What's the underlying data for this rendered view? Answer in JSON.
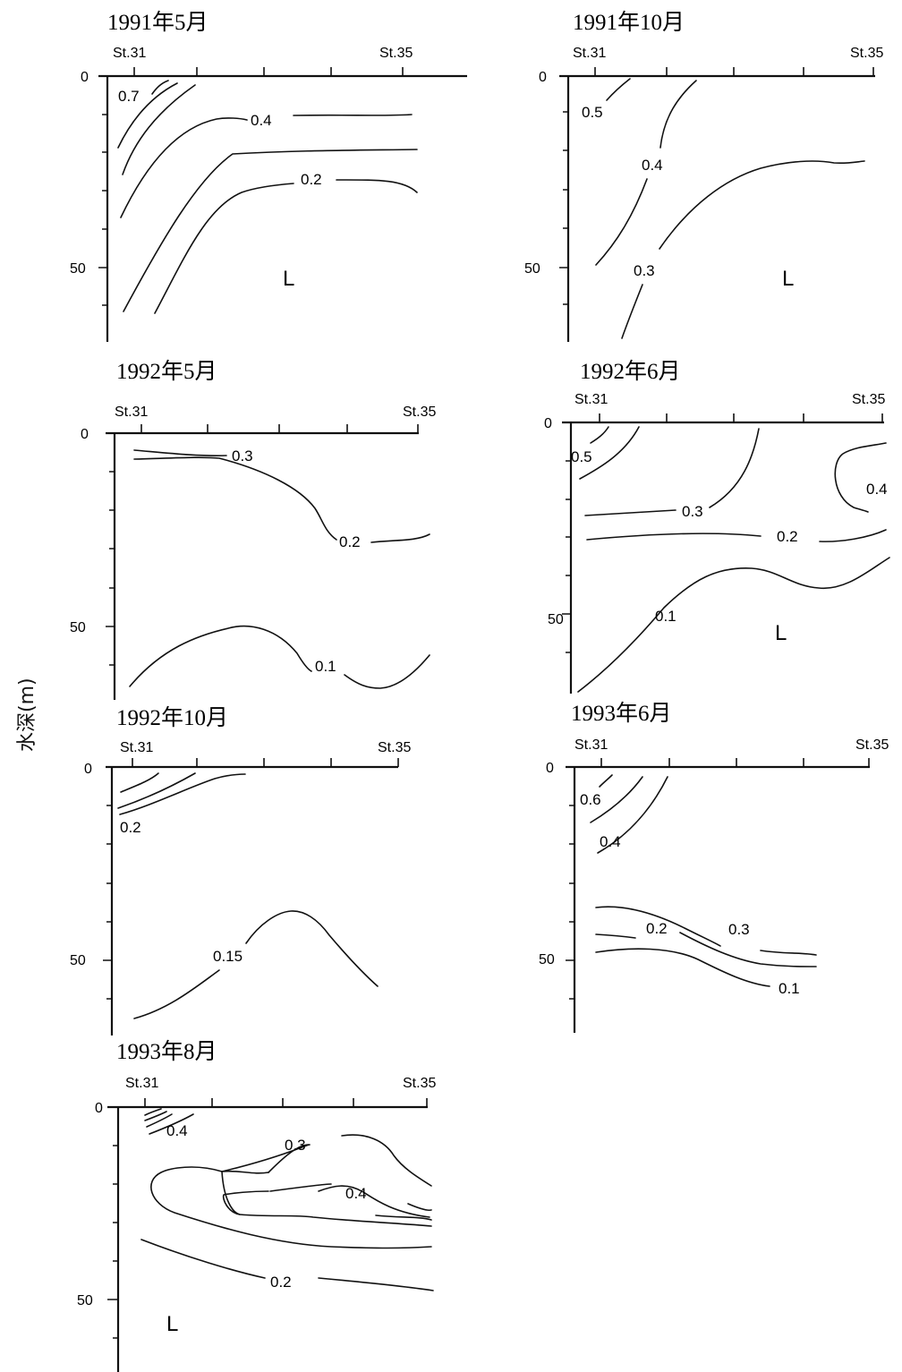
{
  "y_axis_label": "水深(m)",
  "chart_data": [
    {
      "type": "contour",
      "title": "1991年5月",
      "x_start_label": "St.31",
      "x_end_label": "St.35",
      "y_ticks": [
        "0",
        "50"
      ],
      "ylim": [
        0,
        70
      ],
      "contour_labels": [
        "0.7",
        "0.4",
        "0.2"
      ],
      "region_label": "L"
    },
    {
      "type": "contour",
      "title": "1991年10月",
      "x_start_label": "St.31",
      "x_end_label": "St.35",
      "y_ticks": [
        "0",
        "50"
      ],
      "ylim": [
        0,
        70
      ],
      "contour_labels": [
        "0.5",
        "0.4",
        "0.3"
      ],
      "region_label": "L"
    },
    {
      "type": "contour",
      "title": "1992年5月",
      "x_start_label": "St.31",
      "x_end_label": "St.35",
      "y_ticks": [
        "0",
        "50"
      ],
      "ylim": [
        0,
        70
      ],
      "contour_labels": [
        "0.3",
        "0.2",
        "0.1"
      ],
      "region_label": ""
    },
    {
      "type": "contour",
      "title": "1992年6月",
      "x_start_label": "St.31",
      "x_end_label": "St.35",
      "y_ticks": [
        "0",
        "50"
      ],
      "ylim": [
        0,
        70
      ],
      "contour_labels": [
        "0.5",
        "0.4",
        "0.3",
        "0.2",
        "0.1"
      ],
      "region_label": "L"
    },
    {
      "type": "contour",
      "title": "1992年10月",
      "x_start_label": "St.31",
      "x_end_label": "St.35",
      "y_ticks": [
        "0",
        "50"
      ],
      "ylim": [
        0,
        70
      ],
      "contour_labels": [
        "0.2",
        "0.15"
      ],
      "region_label": ""
    },
    {
      "type": "contour",
      "title": "1993年6月",
      "x_start_label": "St.31",
      "x_end_label": "St.35",
      "y_ticks": [
        "0",
        "50"
      ],
      "ylim": [
        0,
        70
      ],
      "contour_labels": [
        "0.6",
        "0.4",
        "0.3",
        "0.2",
        "0.1"
      ],
      "region_label": ""
    },
    {
      "type": "contour",
      "title": "1993年8月",
      "x_start_label": "St.31",
      "x_end_label": "St.35",
      "y_ticks": [
        "0",
        "50"
      ],
      "ylim": [
        0,
        70
      ],
      "contour_labels": [
        "0.4",
        "0.3",
        "0.4",
        "0.2"
      ],
      "region_label": "L"
    }
  ]
}
